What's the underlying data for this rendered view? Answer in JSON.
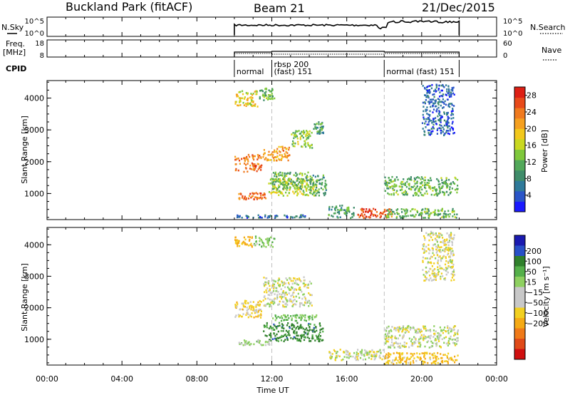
{
  "header": {
    "title": "Buckland Park (fitACF)",
    "beam": "Beam 21",
    "date": "21/Dec/2015"
  },
  "nsky_panel": {
    "left_label": "N.Sky",
    "right_label": "N.Search",
    "left_ticks": [
      "10^5",
      "10^0"
    ],
    "right_ticks": [
      "10^5",
      "10^0"
    ]
  },
  "freq_panel": {
    "left_label_line1": "Freq.",
    "left_label_line2": "[MHz]",
    "right_label": "Nave",
    "left_ticks": [
      "18",
      "8"
    ],
    "right_ticks": [
      "60",
      "0"
    ]
  },
  "cpid_panel": {
    "label": "CPID",
    "segments": [
      {
        "start_hr": 10.0,
        "end_hr": 12.0,
        "text": "normal"
      },
      {
        "start_hr": 12.0,
        "end_hr": 18.0,
        "text_line1": "rbsp 200",
        "text_line2": "(fast) 151"
      },
      {
        "start_hr": 18.0,
        "end_hr": 22.0,
        "text": "normal (fast) 151"
      }
    ]
  },
  "x_axis": {
    "label": "Time UT",
    "ticks": [
      "00:00",
      "04:00",
      "08:00",
      "12:00",
      "16:00",
      "20:00",
      "00:00"
    ],
    "range_hr": [
      0,
      24
    ],
    "data_range_hr": [
      10.0,
      22.0
    ]
  },
  "power_panel": {
    "ylabel": "Slant Range [km]",
    "yticks": [
      "1000",
      "2000",
      "3000",
      "4000"
    ],
    "ylim_km": [
      180,
      4550
    ],
    "colorbar": {
      "label": "Power [dB]",
      "ticks": [
        "4",
        "8",
        "12",
        "16",
        "20",
        "24",
        "28"
      ],
      "range": [
        0,
        30
      ],
      "colors": [
        "#1a1aff",
        "#2a55c8",
        "#2f7a9a",
        "#3f8c6a",
        "#52a85a",
        "#7fc83c",
        "#c9d820",
        "#f2c81c",
        "#f5a020",
        "#f07a1e",
        "#e84a1a",
        "#dd1f14"
      ]
    }
  },
  "velocity_panel": {
    "ylabel": "Slant Range [km]",
    "yticks": [
      "1000",
      "2000",
      "3000",
      "4000"
    ],
    "ylim_km": [
      180,
      4550
    ],
    "colorbar": {
      "label": "Velocity [m s⁻¹]",
      "ticks": [
        "200",
        "100",
        "50",
        "15",
        "−15",
        "−50",
        "−100",
        "−200"
      ],
      "colors": [
        "#1a1ab0",
        "#2850c8",
        "#30802c",
        "#55b04a",
        "#8ed060",
        "#c8c8c8",
        "#c8c8c8",
        "#f2d020",
        "#f5aa15",
        "#f07a18",
        "#e04a18",
        "#d01010"
      ]
    }
  },
  "chart_data": [
    {
      "type": "heatmap",
      "title": "Buckland Park (fitACF)",
      "xlabel": "Time UT",
      "ylabel": "Slant Range [km]",
      "zlabel": "Power [dB]",
      "xlim_hr": [
        0,
        24
      ],
      "ylim_km": [
        180,
        4550
      ],
      "zlim": [
        0,
        30
      ],
      "regions": [
        {
          "t_start": 10.0,
          "t_end": 11.3,
          "r_start": 3700,
          "r_end": 4250,
          "power_db": 18
        },
        {
          "t_start": 11.3,
          "t_end": 12.2,
          "r_start": 3900,
          "r_end": 4350,
          "power_db": 12
        },
        {
          "t_start": 10.0,
          "t_end": 11.5,
          "r_start": 1650,
          "r_end": 2250,
          "power_db": 24
        },
        {
          "t_start": 11.5,
          "t_end": 13.0,
          "r_start": 2000,
          "r_end": 2500,
          "power_db": 22
        },
        {
          "t_start": 13.0,
          "t_end": 14.2,
          "r_start": 2400,
          "r_end": 3000,
          "power_db": 14
        },
        {
          "t_start": 14.2,
          "t_end": 14.8,
          "r_start": 2800,
          "r_end": 3300,
          "power_db": 10
        },
        {
          "t_start": 10.2,
          "t_end": 11.8,
          "r_start": 780,
          "r_end": 1050,
          "power_db": 24
        },
        {
          "t_start": 11.8,
          "t_end": 14.5,
          "r_start": 900,
          "r_end": 1500,
          "power_db": 16
        },
        {
          "t_start": 12.0,
          "t_end": 14.0,
          "r_start": 1100,
          "r_end": 1700,
          "power_db": 12
        },
        {
          "t_start": 14.0,
          "t_end": 15.0,
          "r_start": 900,
          "r_end": 1600,
          "power_db": 10
        },
        {
          "t_start": 16.5,
          "t_end": 18.5,
          "r_start": 200,
          "r_end": 550,
          "power_db": 26
        },
        {
          "t_start": 15.0,
          "t_end": 16.5,
          "r_start": 200,
          "r_end": 650,
          "power_db": 10
        },
        {
          "t_start": 18.0,
          "t_end": 22.0,
          "r_start": 200,
          "r_end": 550,
          "power_db": 12
        },
        {
          "t_start": 18.0,
          "t_end": 22.0,
          "r_start": 900,
          "r_end": 1550,
          "power_db": 12
        },
        {
          "t_start": 20.0,
          "t_end": 21.8,
          "r_start": 2800,
          "r_end": 4450,
          "power_db": 5
        },
        {
          "t_start": 10.0,
          "t_end": 14.0,
          "r_start": 200,
          "r_end": 350,
          "power_db": 6
        }
      ]
    },
    {
      "type": "heatmap",
      "xlabel": "Time UT",
      "ylabel": "Slant Range [km]",
      "zlabel": "Velocity [m s⁻¹]",
      "xlim_hr": [
        0,
        24
      ],
      "ylim_km": [
        180,
        4550
      ],
      "zlim": [
        -200,
        200
      ],
      "regions": [
        {
          "t_start": 10.0,
          "t_end": 11.0,
          "r_start": 3900,
          "r_end": 4300,
          "velocity": -60
        },
        {
          "t_start": 11.0,
          "t_end": 12.2,
          "r_start": 3900,
          "r_end": 4300,
          "velocity": 40
        },
        {
          "t_start": 10.0,
          "t_end": 11.5,
          "r_start": 1650,
          "r_end": 2250,
          "velocity": -25
        },
        {
          "t_start": 11.5,
          "t_end": 14.2,
          "r_start": 2000,
          "r_end": 3000,
          "velocity": 0
        },
        {
          "t_start": 11.5,
          "t_end": 14.8,
          "r_start": 900,
          "r_end": 1550,
          "velocity": 120
        },
        {
          "t_start": 10.2,
          "t_end": 12.0,
          "r_start": 780,
          "r_end": 1000,
          "velocity": 20
        },
        {
          "t_start": 12.0,
          "t_end": 14.5,
          "r_start": 1550,
          "r_end": 1800,
          "velocity": 60
        },
        {
          "t_start": 15.0,
          "t_end": 18.0,
          "r_start": 300,
          "r_end": 700,
          "velocity": 0
        },
        {
          "t_start": 18.0,
          "t_end": 22.0,
          "r_start": 700,
          "r_end": 1450,
          "velocity": 5
        },
        {
          "t_start": 18.0,
          "t_end": 22.0,
          "r_start": 180,
          "r_end": 600,
          "velocity": -45
        },
        {
          "t_start": 20.0,
          "t_end": 21.8,
          "r_start": 2800,
          "r_end": 4450,
          "velocity": -10
        }
      ]
    }
  ]
}
